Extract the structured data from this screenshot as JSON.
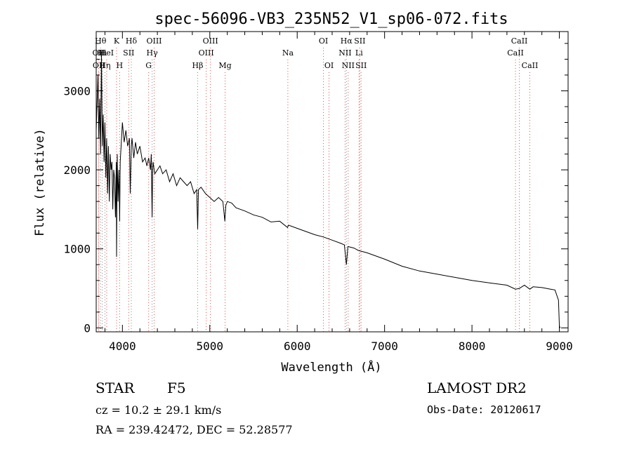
{
  "chart_data": {
    "type": "line",
    "title": "spec-56096-VB3_235N52_V1_sp06-072.fits",
    "xlabel": "Wavelength (Å)",
    "ylabel": "Flux (relative)",
    "xlim": [
      3700,
      9100
    ],
    "ylim": [
      -50,
      3750
    ],
    "xticks": [
      4000,
      5000,
      6000,
      7000,
      8000,
      9000
    ],
    "yticks": [
      0,
      1000,
      2000,
      3000
    ],
    "xtick_labels": [
      "4000",
      "5000",
      "6000",
      "7000",
      "8000",
      "9000"
    ],
    "ytick_labels": [
      "0",
      "1000",
      "2000",
      "3000"
    ],
    "grid": false,
    "series": [
      {
        "color": "#000000",
        "x": [
          3700,
          3720,
          3730,
          3740,
          3750,
          3760,
          3770,
          3780,
          3790,
          3800,
          3810,
          3820,
          3830,
          3840,
          3850,
          3860,
          3870,
          3880,
          3890,
          3900,
          3910,
          3920,
          3930,
          3933,
          3940,
          3950,
          3960,
          3968,
          3975,
          3990,
          4000,
          4020,
          4040,
          4060,
          4080,
          4090,
          4102,
          4110,
          4130,
          4150,
          4170,
          4200,
          4230,
          4260,
          4280,
          4300,
          4320,
          4330,
          4340,
          4345,
          4350,
          4370,
          4400,
          4430,
          4460,
          4500,
          4540,
          4580,
          4620,
          4660,
          4700,
          4740,
          4780,
          4820,
          4850,
          4861,
          4870,
          4900,
          4950,
          5000,
          5050,
          5100,
          5150,
          5172,
          5183,
          5200,
          5250,
          5300,
          5400,
          5500,
          5600,
          5700,
          5800,
          5890,
          5900,
          6000,
          6100,
          6200,
          6300,
          6400,
          6500,
          6540,
          6563,
          6580,
          6650,
          6700,
          6800,
          7000,
          7200,
          7400,
          7600,
          7800,
          8000,
          8200,
          8400,
          8498,
          8542,
          8600,
          8662,
          8700,
          8800,
          8900,
          8950,
          8990,
          9000,
          9010
        ],
        "values": [
          2500,
          3200,
          2400,
          2900,
          2200,
          3500,
          2300,
          2700,
          2100,
          2600,
          1900,
          2400,
          1700,
          2300,
          1600,
          2200,
          2000,
          2100,
          1500,
          2000,
          1900,
          1400,
          2100,
          900,
          2200,
          1600,
          2000,
          1350,
          2100,
          2400,
          2600,
          2350,
          2500,
          2300,
          2400,
          1700,
          2300,
          2400,
          2150,
          2350,
          2200,
          2300,
          2100,
          2150,
          2050,
          2150,
          2000,
          2200,
          1400,
          1950,
          2100,
          1950,
          2000,
          2050,
          1950,
          2000,
          1850,
          1950,
          1800,
          1900,
          1850,
          1800,
          1850,
          1700,
          1750,
          1250,
          1750,
          1780,
          1700,
          1650,
          1600,
          1650,
          1600,
          1350,
          1550,
          1600,
          1580,
          1520,
          1480,
          1430,
          1400,
          1340,
          1350,
          1270,
          1300,
          1260,
          1220,
          1180,
          1150,
          1110,
          1070,
          1050,
          800,
          1030,
          1010,
          980,
          950,
          870,
          780,
          720,
          680,
          640,
          600,
          570,
          540,
          490,
          500,
          540,
          490,
          520,
          510,
          490,
          480,
          350,
          20,
          0
        ]
      }
    ],
    "annotations": [
      {
        "wavelength": 3727,
        "label": "OII",
        "row": 2
      },
      {
        "wavelength": 3730,
        "label": "OII",
        "row": 3
      },
      {
        "wavelength": 3750,
        "label": "Hθ",
        "row": 1
      },
      {
        "wavelength": 3770,
        "label": "Hι",
        "row": 2
      },
      {
        "wavelength": 3800,
        "label": "Hη",
        "row": 3
      },
      {
        "wavelength": 3820,
        "label": "HeI",
        "row": 2
      },
      {
        "wavelength": 3933,
        "label": "K",
        "row": 1
      },
      {
        "wavelength": 3968,
        "label": "H",
        "row": 3
      },
      {
        "wavelength": 4072,
        "label": "SII",
        "row": 2
      },
      {
        "wavelength": 4102,
        "label": "Hδ",
        "row": 1
      },
      {
        "wavelength": 4300,
        "label": "G",
        "row": 3
      },
      {
        "wavelength": 4340,
        "label": "Hγ",
        "row": 2
      },
      {
        "wavelength": 4363,
        "label": "OIII",
        "row": 1
      },
      {
        "wavelength": 4861,
        "label": "Hβ",
        "row": 3
      },
      {
        "wavelength": 4959,
        "label": "OIII",
        "row": 2
      },
      {
        "wavelength": 5007,
        "label": "OIII",
        "row": 1
      },
      {
        "wavelength": 5175,
        "label": "Mg",
        "row": 3
      },
      {
        "wavelength": 5893,
        "label": "Na",
        "row": 2
      },
      {
        "wavelength": 6300,
        "label": "OI",
        "row": 1
      },
      {
        "wavelength": 6364,
        "label": "OI",
        "row": 3
      },
      {
        "wavelength": 6548,
        "label": "NII",
        "row": 2
      },
      {
        "wavelength": 6563,
        "label": "Hα",
        "row": 1
      },
      {
        "wavelength": 6583,
        "label": "NII",
        "row": 3
      },
      {
        "wavelength": 6708,
        "label": "Li",
        "row": 2
      },
      {
        "wavelength": 6716,
        "label": "SII",
        "row": 1
      },
      {
        "wavelength": 6731,
        "label": "SII",
        "row": 3
      },
      {
        "wavelength": 8498,
        "label": "CaII",
        "row": 2
      },
      {
        "wavelength": 8542,
        "label": "CaII",
        "row": 1
      },
      {
        "wavelength": 8662,
        "label": "CaII",
        "row": 3
      }
    ],
    "annotation_colors": {
      "red": "#e05050",
      "gray": "#888888"
    }
  },
  "info": {
    "object_class": "STAR",
    "subclass": "F5",
    "survey": "LAMOST DR2",
    "cz_text": "cz = 10.2 ± 29.1 km/s",
    "obs_date": "Obs-Date: 20120617",
    "coords": "RA = 239.42472, DEC =  52.28577"
  }
}
